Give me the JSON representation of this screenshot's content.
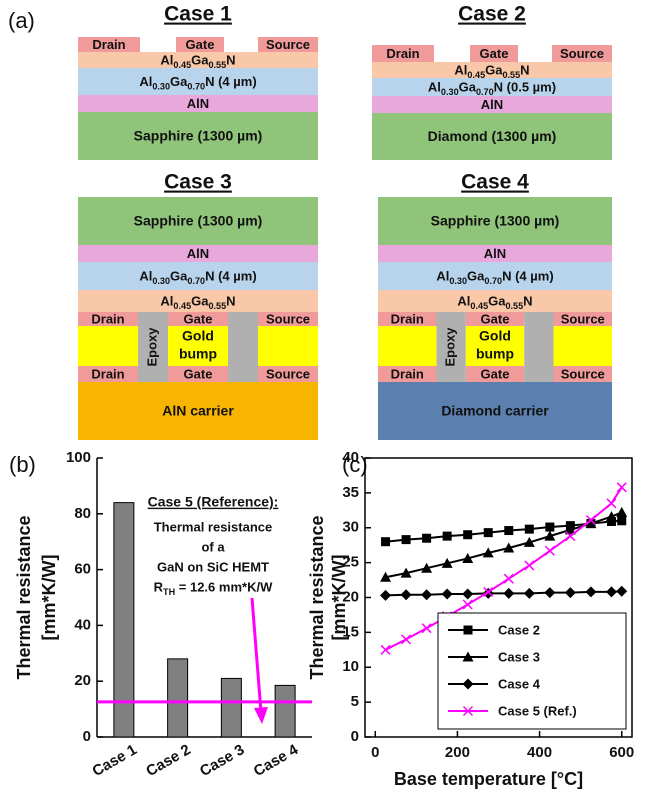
{
  "panel_a": {
    "label": "(a)",
    "cases": [
      {
        "title": "Case 1",
        "electrodes": [
          "Drain",
          "Gate",
          "Source"
        ],
        "barrier": "Al0.45Ga0.55N",
        "buffer": "Al0.30Ga0.70N (4 µm)",
        "nucleation": "AlN",
        "substrate": "Sapphire (1300 µm)"
      },
      {
        "title": "Case 2",
        "electrodes": [
          "Drain",
          "Gate",
          "Source"
        ],
        "barrier": "Al0.45Ga0.55N",
        "buffer": "Al0.30Ga0.70N (0.5 µm)",
        "nucleation": "AlN",
        "substrate": "Diamond (1300 µm)"
      },
      {
        "title": "Case 3",
        "substrate": "Sapphire (1300 µm)",
        "nucleation": "AlN",
        "buffer": "Al0.30Ga0.70N (4 µm)",
        "barrier": "Al0.45Ga0.55N",
        "electrodes": [
          "Drain",
          "Gate",
          "Source"
        ],
        "epoxy": "Epoxy",
        "bump": [
          "Gold",
          "bump"
        ],
        "bottom_electrodes": [
          "Drain",
          "Gate",
          "Source"
        ],
        "carrier": "AlN carrier"
      },
      {
        "title": "Case 4",
        "substrate": "Sapphire (1300 µm)",
        "nucleation": "AlN",
        "buffer": "Al0.30Ga0.70N (4 µm)",
        "barrier": "Al0.45Ga0.55N",
        "electrodes": [
          "Drain",
          "Gate",
          "Source"
        ],
        "epoxy": "Epoxy",
        "bump": [
          "Gold",
          "bump"
        ],
        "bottom_electrodes": [
          "Drain",
          "Gate",
          "Source"
        ],
        "carrier": "Diamond carrier"
      }
    ]
  },
  "chart_data": [
    {
      "type": "bar",
      "panel_label": "(b)",
      "y_label": [
        "Thermal resistance",
        "[mm*K/W]"
      ],
      "categories": [
        "Case 1",
        "Case 2",
        "Case 3",
        "Case 4"
      ],
      "values": [
        84,
        28,
        21,
        18.5
      ],
      "color": "#808080",
      "ylim": [
        0,
        100
      ],
      "yticks": [
        0,
        20,
        40,
        60,
        80,
        100
      ],
      "reference": {
        "value": 12.6,
        "color": "#ff00ff"
      },
      "annotation": {
        "title": "Case 5 (Reference):",
        "lines": [
          "Thermal resistance",
          "of a",
          "GaN on SiC HEMT",
          "RTH = 12.6 mm*K/W"
        ]
      }
    },
    {
      "type": "line",
      "panel_label": "(c)",
      "x_label": "Base temperature [°C]",
      "y_label": [
        "Thermal resistance",
        "[mm*K/W]"
      ],
      "x": [
        25,
        75,
        125,
        175,
        225,
        275,
        325,
        375,
        425,
        475,
        525,
        575,
        600
      ],
      "series": [
        {
          "name": "Case 2",
          "color": "#000000",
          "marker": "square",
          "values": [
            28.0,
            28.3,
            28.5,
            28.8,
            29.0,
            29.3,
            29.6,
            29.8,
            30.1,
            30.3,
            30.6,
            30.9,
            31.0
          ]
        },
        {
          "name": "Case 3",
          "color": "#000000",
          "marker": "triangle",
          "values": [
            22.9,
            23.5,
            24.2,
            24.9,
            25.6,
            26.4,
            27.1,
            27.9,
            28.8,
            29.7,
            30.6,
            31.6,
            32.2
          ]
        },
        {
          "name": "Case 4",
          "color": "#000000",
          "marker": "diamond",
          "values": [
            20.3,
            20.4,
            20.4,
            20.5,
            20.5,
            20.6,
            20.6,
            20.6,
            20.7,
            20.7,
            20.8,
            20.8,
            20.9
          ]
        },
        {
          "name": "Case 5 (Ref.)",
          "color": "#ff00ff",
          "marker": "x",
          "values": [
            12.5,
            14.0,
            15.6,
            17.3,
            19.0,
            20.8,
            22.7,
            24.6,
            26.7,
            28.8,
            31.1,
            33.5,
            35.8
          ]
        }
      ],
      "xlim": [
        -25,
        625
      ],
      "xticks": [
        0,
        200,
        400,
        600
      ],
      "ylim": [
        0,
        40
      ],
      "yticks": [
        0,
        5,
        10,
        15,
        20,
        25,
        30,
        35,
        40
      ],
      "legend": "lower right"
    }
  ]
}
